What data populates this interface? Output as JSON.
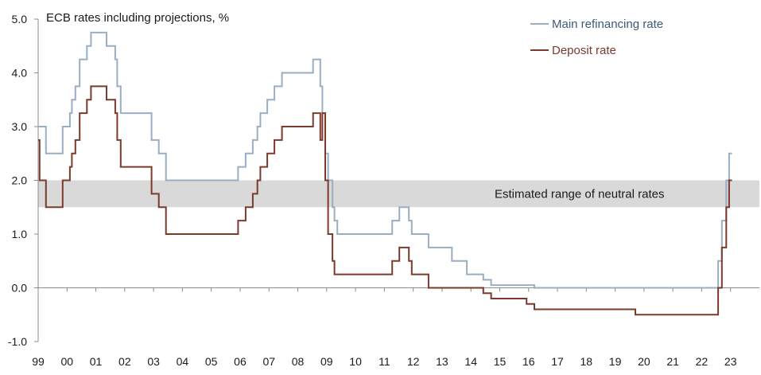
{
  "chart_data": {
    "type": "line",
    "title": "ECB rates including projections, %",
    "ylim": [
      -1.0,
      5.0
    ],
    "yticks": [
      "5.0",
      "4.0",
      "3.0",
      "2.0",
      "1.0",
      "0.0",
      "-1.0"
    ],
    "xlim": [
      1999.0,
      2024.0
    ],
    "xticks": [
      "99",
      "00",
      "01",
      "02",
      "03",
      "04",
      "05",
      "06",
      "07",
      "08",
      "09",
      "10",
      "11",
      "12",
      "13",
      "14",
      "15",
      "16",
      "17",
      "18",
      "19",
      "20",
      "21",
      "22",
      "23"
    ],
    "legend_position": "top-right",
    "band": {
      "label": "Estimated range of neutral rates",
      "low": 1.5,
      "high": 2.0,
      "color": "#d9d9d9"
    },
    "series": [
      {
        "name": "Main refinancing rate",
        "color": "#9aaec3",
        "label_color": "#3c5a7a",
        "points": [
          [
            1999.0,
            3.0
          ],
          [
            1999.27,
            2.5
          ],
          [
            1999.85,
            3.0
          ],
          [
            2000.1,
            3.25
          ],
          [
            2000.17,
            3.5
          ],
          [
            2000.29,
            3.75
          ],
          [
            2000.44,
            4.25
          ],
          [
            2000.69,
            4.5
          ],
          [
            2000.83,
            4.75
          ],
          [
            2001.37,
            4.5
          ],
          [
            2001.67,
            4.25
          ],
          [
            2001.74,
            3.75
          ],
          [
            2001.86,
            3.25
          ],
          [
            2002.93,
            2.75
          ],
          [
            2003.18,
            2.5
          ],
          [
            2003.43,
            2.0
          ],
          [
            2005.93,
            2.25
          ],
          [
            2006.19,
            2.5
          ],
          [
            2006.44,
            2.75
          ],
          [
            2006.6,
            3.0
          ],
          [
            2006.7,
            3.25
          ],
          [
            2006.94,
            3.5
          ],
          [
            2007.19,
            3.75
          ],
          [
            2007.45,
            4.0
          ],
          [
            2008.53,
            4.25
          ],
          [
            2008.78,
            3.75
          ],
          [
            2008.85,
            3.25
          ],
          [
            2008.95,
            2.5
          ],
          [
            2009.05,
            2.0
          ],
          [
            2009.2,
            1.5
          ],
          [
            2009.27,
            1.25
          ],
          [
            2009.37,
            1.0
          ],
          [
            2011.27,
            1.25
          ],
          [
            2011.52,
            1.5
          ],
          [
            2011.85,
            1.25
          ],
          [
            2011.95,
            1.0
          ],
          [
            2012.53,
            0.75
          ],
          [
            2013.34,
            0.5
          ],
          [
            2013.86,
            0.25
          ],
          [
            2014.43,
            0.15
          ],
          [
            2014.7,
            0.05
          ],
          [
            2016.2,
            0.0
          ],
          [
            2022.57,
            0.5
          ],
          [
            2022.7,
            1.25
          ],
          [
            2022.85,
            2.0
          ],
          [
            2022.95,
            2.5
          ],
          [
            2023.05,
            2.5
          ]
        ]
      },
      {
        "name": "Deposit rate",
        "color": "#7b3a2c",
        "label_color": "#7b3a2c",
        "points": [
          [
            1999.0,
            2.75
          ],
          [
            1999.05,
            2.0
          ],
          [
            1999.27,
            1.5
          ],
          [
            1999.85,
            2.0
          ],
          [
            2000.1,
            2.25
          ],
          [
            2000.17,
            2.5
          ],
          [
            2000.29,
            2.75
          ],
          [
            2000.44,
            3.25
          ],
          [
            2000.69,
            3.5
          ],
          [
            2000.83,
            3.75
          ],
          [
            2001.37,
            3.5
          ],
          [
            2001.67,
            3.25
          ],
          [
            2001.74,
            2.75
          ],
          [
            2001.86,
            2.25
          ],
          [
            2002.93,
            1.75
          ],
          [
            2003.18,
            1.5
          ],
          [
            2003.43,
            1.0
          ],
          [
            2005.93,
            1.25
          ],
          [
            2006.19,
            1.5
          ],
          [
            2006.44,
            1.75
          ],
          [
            2006.6,
            2.0
          ],
          [
            2006.7,
            2.25
          ],
          [
            2006.94,
            2.5
          ],
          [
            2007.19,
            2.75
          ],
          [
            2007.45,
            3.0
          ],
          [
            2008.53,
            3.25
          ],
          [
            2008.78,
            2.75
          ],
          [
            2008.85,
            3.25
          ],
          [
            2008.95,
            2.0
          ],
          [
            2009.05,
            1.0
          ],
          [
            2009.2,
            0.5
          ],
          [
            2009.27,
            0.25
          ],
          [
            2011.27,
            0.5
          ],
          [
            2011.52,
            0.75
          ],
          [
            2011.85,
            0.5
          ],
          [
            2011.95,
            0.25
          ],
          [
            2012.53,
            0.0
          ],
          [
            2014.43,
            -0.1
          ],
          [
            2014.7,
            -0.2
          ],
          [
            2015.93,
            -0.3
          ],
          [
            2016.2,
            -0.4
          ],
          [
            2019.7,
            -0.5
          ],
          [
            2022.57,
            0.0
          ],
          [
            2022.7,
            0.75
          ],
          [
            2022.85,
            1.5
          ],
          [
            2022.95,
            2.0
          ],
          [
            2023.05,
            2.0
          ]
        ]
      }
    ]
  }
}
